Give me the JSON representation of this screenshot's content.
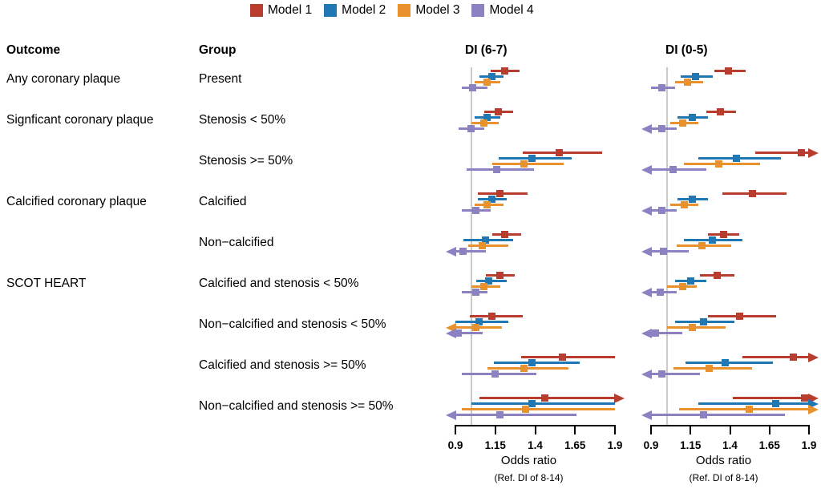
{
  "headers": {
    "outcome": "Outcome",
    "group": "Group"
  },
  "chart_data": {
    "type": "scatter",
    "subtype": "forest-plot",
    "panels": [
      "DI (6-7)",
      "DI (0-5)"
    ],
    "xlabel": "Odds ratio",
    "x_note": "(Ref. DI of 8-14)",
    "xlim": [
      0.9,
      1.9
    ],
    "xticks": [
      0.9,
      1.15,
      1.4,
      1.65,
      1.9
    ],
    "xtick_labels": [
      "0.9",
      "1.15",
      "1.4",
      "1.65",
      "1.9"
    ],
    "ref_line": 1.0,
    "ref_line_color": "#c9c9c9",
    "grid": false,
    "legend_position": "top",
    "series": [
      {
        "name": "Model 1",
        "color": "#b83d2f"
      },
      {
        "name": "Model 2",
        "color": "#1f77b4"
      },
      {
        "name": "Model 3",
        "color": "#e8912d"
      },
      {
        "name": "Model 4",
        "color": "#8c81c2"
      }
    ],
    "value_format": "[estimate, ci_low, ci_high, optional 'la'(arrow below 0.9)/'ha'(arrow above 1.9)]",
    "rows": [
      {
        "outcome": "Any coronary plaque",
        "group": "Present",
        "or": [
          [
            [
              1.21,
              1.12,
              1.3
            ],
            [
              1.13,
              1.05,
              1.2
            ],
            [
              1.1,
              1.02,
              1.18
            ],
            [
              1.01,
              0.94,
              1.1
            ]
          ],
          [
            [
              1.39,
              1.3,
              1.5
            ],
            [
              1.18,
              1.09,
              1.29
            ],
            [
              1.13,
              1.05,
              1.23
            ],
            [
              0.97,
              0.9,
              1.05
            ]
          ]
        ]
      },
      {
        "outcome": "Signficant coronary plaque",
        "group": "Stenosis < 50%",
        "or": [
          [
            [
              1.17,
              1.08,
              1.26
            ],
            [
              1.1,
              1.02,
              1.18
            ],
            [
              1.08,
              1.0,
              1.17
            ],
            [
              1.0,
              0.92,
              1.08
            ]
          ],
          [
            [
              1.34,
              1.25,
              1.44
            ],
            [
              1.16,
              1.07,
              1.26
            ],
            [
              1.1,
              1.02,
              1.2
            ],
            [
              0.97,
              0.9,
              1.06,
              "la"
            ]
          ]
        ]
      },
      {
        "outcome": "",
        "group": "Stenosis >= 50%",
        "or": [
          [
            [
              1.55,
              1.32,
              1.82
            ],
            [
              1.38,
              1.17,
              1.63
            ],
            [
              1.33,
              1.13,
              1.58
            ],
            [
              1.16,
              0.97,
              1.39
            ]
          ],
          [
            [
              1.85,
              1.56,
              1.9,
              "ha"
            ],
            [
              1.44,
              1.2,
              1.72
            ],
            [
              1.33,
              1.11,
              1.59
            ],
            [
              1.04,
              0.9,
              1.25,
              "la"
            ]
          ]
        ]
      },
      {
        "outcome": "Calcified coronary plaque",
        "group": "Calcified",
        "or": [
          [
            [
              1.18,
              1.04,
              1.35
            ],
            [
              1.13,
              1.04,
              1.22
            ],
            [
              1.1,
              1.02,
              1.2
            ],
            [
              1.03,
              0.94,
              1.12
            ]
          ],
          [
            [
              1.54,
              1.35,
              1.76
            ],
            [
              1.16,
              1.07,
              1.26
            ],
            [
              1.11,
              1.02,
              1.2
            ],
            [
              0.97,
              0.9,
              1.06,
              "la"
            ]
          ]
        ]
      },
      {
        "outcome": "",
        "group": "Non−calcified",
        "or": [
          [
            [
              1.21,
              1.13,
              1.31
            ],
            [
              1.09,
              0.95,
              1.26
            ],
            [
              1.07,
              0.98,
              1.23
            ],
            [
              0.95,
              0.9,
              1.09,
              "la"
            ]
          ],
          [
            [
              1.36,
              1.26,
              1.46
            ],
            [
              1.29,
              1.11,
              1.48
            ],
            [
              1.22,
              1.06,
              1.41
            ],
            [
              0.98,
              0.9,
              1.14,
              "la"
            ]
          ]
        ]
      },
      {
        "outcome": "SCOT HEART",
        "group": "Calcified and stenosis < 50%",
        "or": [
          [
            [
              1.18,
              1.09,
              1.27
            ],
            [
              1.11,
              1.03,
              1.22
            ],
            [
              1.08,
              1.0,
              1.18
            ],
            [
              1.03,
              0.94,
              1.1
            ]
          ],
          [
            [
              1.32,
              1.21,
              1.43
            ],
            [
              1.15,
              1.05,
              1.25
            ],
            [
              1.1,
              1.0,
              1.19
            ],
            [
              0.96,
              0.9,
              1.06,
              "la"
            ]
          ]
        ]
      },
      {
        "outcome": "",
        "group": "Non−calcified and stenosis < 50%",
        "or": [
          [
            [
              1.13,
              0.99,
              1.32
            ],
            [
              1.05,
              0.9,
              1.23
            ],
            [
              1.03,
              0.9,
              1.19,
              "la"
            ],
            [
              0.92,
              0.9,
              1.07,
              "la"
            ]
          ],
          [
            [
              1.46,
              1.26,
              1.69
            ],
            [
              1.23,
              1.05,
              1.43
            ],
            [
              1.16,
              1.0,
              1.37
            ],
            [
              0.93,
              0.9,
              1.1,
              "la"
            ]
          ]
        ]
      },
      {
        "outcome": "",
        "group": "Calcified and stenosis >= 50%",
        "or": [
          [
            [
              1.57,
              1.31,
              1.9
            ],
            [
              1.38,
              1.14,
              1.68
            ],
            [
              1.33,
              1.1,
              1.61
            ],
            [
              1.15,
              0.94,
              1.41
            ]
          ],
          [
            [
              1.8,
              1.48,
              1.9,
              "ha"
            ],
            [
              1.37,
              1.12,
              1.67
            ],
            [
              1.27,
              1.04,
              1.54
            ],
            [
              0.97,
              0.9,
              1.21,
              "la"
            ]
          ]
        ]
      },
      {
        "outcome": "",
        "group": "Non−calcified and stenosis >= 50%",
        "or": [
          [
            [
              1.46,
              1.05,
              1.9,
              "ha"
            ],
            [
              1.38,
              1.0,
              1.9
            ],
            [
              1.34,
              0.94,
              1.9
            ],
            [
              1.18,
              0.9,
              1.66,
              "la"
            ]
          ],
          [
            [
              1.87,
              1.42,
              1.9,
              "ha"
            ],
            [
              1.69,
              1.2,
              1.9,
              "ha"
            ],
            [
              1.52,
              1.08,
              1.9,
              "ha"
            ],
            [
              1.23,
              0.9,
              1.75,
              "la"
            ]
          ]
        ]
      }
    ]
  }
}
